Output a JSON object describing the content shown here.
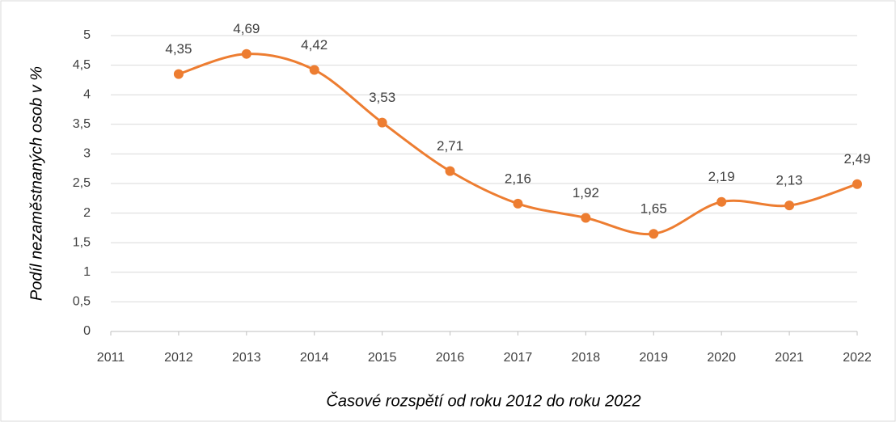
{
  "chart_data": {
    "type": "line",
    "x_label": "Časové rozspětí od roku 2012 do roku 2022",
    "y_label": "Podíl nezaměstnaných osob v %",
    "x": [
      2012,
      2013,
      2014,
      2015,
      2016,
      2017,
      2018,
      2019,
      2020,
      2021,
      2022
    ],
    "series": [
      {
        "name": "Podíl nezaměstnaných osob v %",
        "color": "#ed7d31",
        "values": [
          4.35,
          4.69,
          4.42,
          3.53,
          2.71,
          2.16,
          1.92,
          1.65,
          2.19,
          2.13,
          2.49
        ],
        "value_labels": [
          "4,35",
          "4,69",
          "4,42",
          "3,53",
          "2,71",
          "2,16",
          "1,92",
          "1,65",
          "2,19",
          "2,13",
          "2,49"
        ]
      }
    ],
    "xlim": [
      2011,
      2022
    ],
    "xticks": [
      2011,
      2012,
      2013,
      2014,
      2015,
      2016,
      2017,
      2018,
      2019,
      2020,
      2021,
      2022
    ],
    "ylim": [
      0,
      5
    ],
    "yticks": [
      0,
      {
        "value": 0.5,
        "label": "0,5"
      },
      1,
      {
        "value": 1.5,
        "label": "1,5"
      },
      2,
      {
        "value": 2.5,
        "label": "2,5"
      },
      3,
      {
        "value": 3.5,
        "label": "3,5"
      },
      4,
      {
        "value": 4.5,
        "label": "4,5"
      },
      5
    ],
    "grid": true,
    "smooth": true
  }
}
